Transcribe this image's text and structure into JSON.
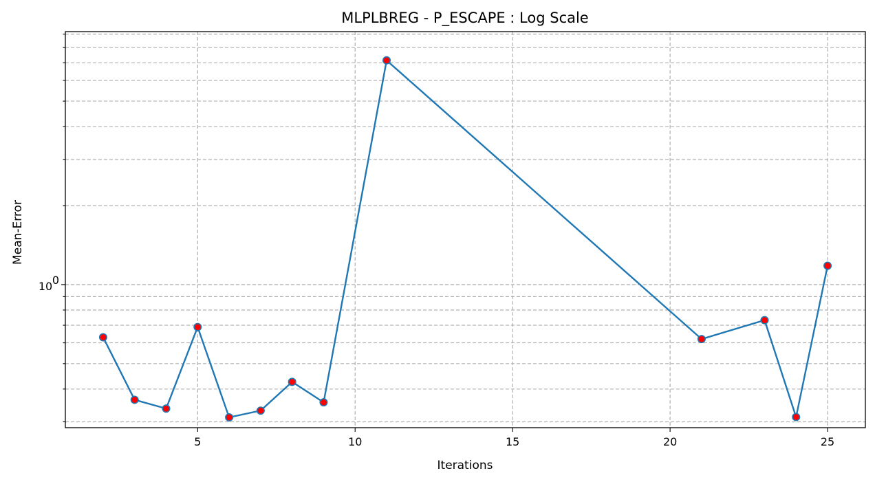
{
  "chart_data": {
    "type": "line",
    "title": "MLPLBREG - P_ESCAPE : Log Scale",
    "xlabel": "Iterations",
    "ylabel": "Mean-Error",
    "yscale": "log",
    "xlim": [
      0.8,
      26.2
    ],
    "ylim": [
      0.285,
      9.2
    ],
    "grid": true,
    "x_ticks": [
      5,
      10,
      15,
      20,
      25
    ],
    "y_major_ticks": [
      1
    ],
    "y_major_tick_labels": [
      "10",
      "0"
    ],
    "y_minor_gridlines": [
      0.3,
      0.4,
      0.5,
      0.6,
      0.7,
      0.8,
      0.9,
      2,
      3,
      4,
      5,
      6,
      7,
      8,
      9
    ],
    "series": [
      {
        "x": [
          2,
          3,
          4,
          5,
          6,
          7,
          8,
          9,
          11,
          21,
          23,
          24,
          25
        ],
        "y": [
          0.63,
          0.364,
          0.337,
          0.689,
          0.312,
          0.331,
          0.426,
          0.356,
          7.15,
          0.62,
          0.732,
          0.313,
          1.18
        ],
        "line_color": "#1f77b4",
        "marker_color": "#ff0000"
      }
    ]
  }
}
